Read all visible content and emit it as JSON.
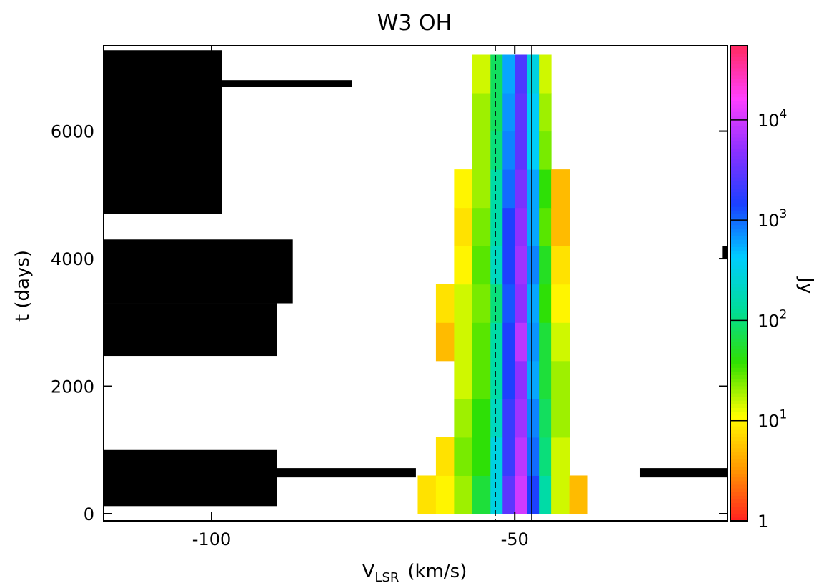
{
  "chart_data": {
    "type": "heatmap",
    "title": "W3 OH",
    "xlabel": {
      "text": "V",
      "subscript": "LSR",
      "unit": "(km/s)"
    },
    "ylabel": "t (days)",
    "colorbar_label": "Jy",
    "xlim": [
      -117.8,
      -14.9
    ],
    "ylim": [
      -112,
      7340
    ],
    "xticks": [
      -100,
      -50
    ],
    "yticks": [
      0,
      2000,
      4000,
      6000
    ],
    "clim": [
      1,
      55000
    ],
    "color_scale": "log",
    "cticks": [
      1,
      {
        "value": 10,
        "label": "10",
        "exponent": "1"
      },
      {
        "value": 100,
        "label": "10",
        "exponent": "2"
      },
      {
        "value": 1000,
        "label": "10",
        "exponent": "3"
      },
      {
        "value": 10000,
        "label": "10",
        "exponent": "4"
      }
    ],
    "colormap": [
      "#ff2020",
      "#ff9a00",
      "#ffff00",
      "#30e000",
      "#00dd99",
      "#00ccff",
      "#1a40ff",
      "#8a30ff",
      "#ff40ff",
      "#ff2a60"
    ],
    "x_bins": [
      -66,
      -63,
      -60,
      -57,
      -54,
      -52,
      -50,
      -48,
      -46,
      -44,
      -41,
      -38
    ],
    "y_bins": [
      0,
      600,
      1200,
      1800,
      2400,
      3000,
      3600,
      4200,
      4800,
      5400,
      6000,
      6600,
      7200
    ],
    "z": [
      [
        8,
        10,
        20,
        60,
        300,
        3000,
        10000,
        1500,
        150,
        15,
        5
      ],
      [
        null,
        8,
        25,
        40,
        300,
        2000,
        8000,
        1000,
        100,
        15,
        null
      ],
      [
        null,
        null,
        20,
        40,
        200,
        2000,
        6000,
        800,
        80,
        20,
        null
      ],
      [
        null,
        null,
        15,
        30,
        150,
        1500,
        5000,
        600,
        60,
        20,
        null
      ],
      [
        null,
        5,
        15,
        30,
        150,
        1500,
        8000,
        700,
        60,
        15,
        null
      ],
      [
        null,
        8,
        15,
        25,
        100,
        1200,
        5000,
        600,
        40,
        10,
        null
      ],
      [
        null,
        null,
        10,
        30,
        200,
        1500,
        6000,
        800,
        50,
        8,
        null
      ],
      [
        null,
        null,
        8,
        25,
        150,
        1500,
        5000,
        600,
        30,
        5,
        null
      ],
      [
        null,
        null,
        10,
        20,
        150,
        1000,
        4000,
        600,
        40,
        5,
        null
      ],
      [
        null,
        null,
        null,
        20,
        100,
        800,
        3000,
        400,
        25,
        null,
        null
      ],
      [
        null,
        null,
        null,
        20,
        80,
        700,
        3000,
        400,
        20,
        null,
        null
      ],
      [
        null,
        null,
        null,
        15,
        80,
        600,
        2500,
        300,
        15,
        null,
        null
      ]
    ],
    "no_data": [
      [
        -117.8,
        -89.2,
        120,
        1000
      ],
      [
        -89.2,
        -66.3,
        570,
        716
      ],
      [
        -29.4,
        -14.9,
        570,
        716
      ],
      [
        -117.8,
        -89.2,
        2476,
        3300
      ],
      [
        -117.8,
        -86.6,
        3300,
        4300
      ],
      [
        -117.8,
        -98.3,
        4700,
        7270
      ],
      [
        -98.3,
        -76.8,
        6690,
        6800
      ],
      [
        -15.8,
        -14.9,
        4000,
        4200
      ]
    ],
    "vlines": [
      {
        "x": -53.2,
        "style": "dashed"
      },
      {
        "x": -47.2,
        "style": "solid"
      }
    ]
  }
}
